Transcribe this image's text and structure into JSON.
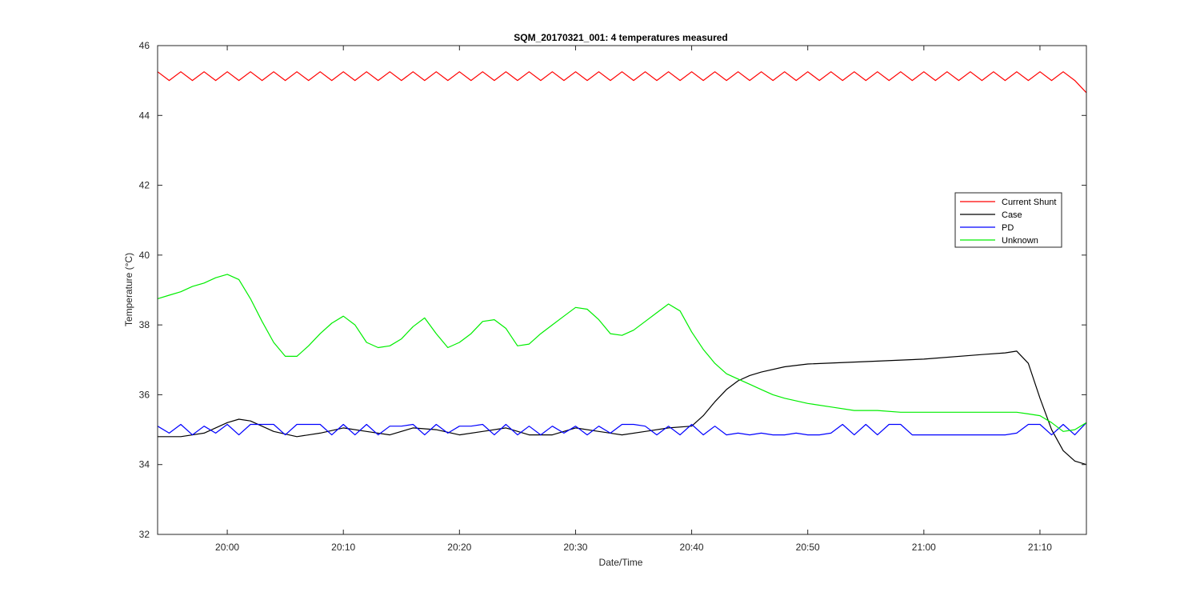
{
  "chart_data": {
    "type": "line",
    "title": "SQM_20170321_001: 4 temperatures measured",
    "xlabel": "Date/Time",
    "ylabel": "Temperature (°C)",
    "xlim": [
      "19:54",
      "21:14"
    ],
    "ylim": [
      32,
      46
    ],
    "x_ticks": [
      "20:00",
      "20:10",
      "20:20",
      "20:30",
      "20:40",
      "20:50",
      "21:00",
      "21:10"
    ],
    "y_ticks": [
      32,
      34,
      36,
      38,
      40,
      42,
      44,
      46
    ],
    "grid": false,
    "legend_position": "right",
    "series": [
      {
        "name": "Current Shunt",
        "color": "#ff0000",
        "x": [
          "19:54",
          "19:55",
          "19:56",
          "19:57",
          "19:58",
          "19:59",
          "20:00",
          "20:01",
          "20:02",
          "20:03",
          "20:04",
          "20:05",
          "20:06",
          "20:07",
          "20:08",
          "20:09",
          "20:10",
          "20:11",
          "20:12",
          "20:13",
          "20:14",
          "20:15",
          "20:16",
          "20:17",
          "20:18",
          "20:19",
          "20:20",
          "20:21",
          "20:22",
          "20:23",
          "20:24",
          "20:25",
          "20:26",
          "20:27",
          "20:28",
          "20:29",
          "20:30",
          "20:31",
          "20:32",
          "20:33",
          "20:34",
          "20:35",
          "20:36",
          "20:37",
          "20:38",
          "20:39",
          "20:40",
          "20:41",
          "20:42",
          "20:43",
          "20:44",
          "20:45",
          "20:46",
          "20:47",
          "20:48",
          "20:49",
          "20:50",
          "20:51",
          "20:52",
          "20:53",
          "20:54",
          "20:55",
          "20:56",
          "20:57",
          "20:58",
          "20:59",
          "21:00",
          "21:01",
          "21:02",
          "21:03",
          "21:04",
          "21:05",
          "21:06",
          "21:07",
          "21:08",
          "21:09",
          "21:10",
          "21:11",
          "21:12",
          "21:13",
          "21:14"
        ],
        "y": [
          45.25,
          45.0,
          45.25,
          45.0,
          45.25,
          45.0,
          45.25,
          45.0,
          45.25,
          45.0,
          45.25,
          45.0,
          45.25,
          45.0,
          45.25,
          45.0,
          45.25,
          45.0,
          45.25,
          45.0,
          45.25,
          45.0,
          45.25,
          45.0,
          45.25,
          45.0,
          45.25,
          45.0,
          45.25,
          45.0,
          45.25,
          45.0,
          45.25,
          45.0,
          45.25,
          45.0,
          45.25,
          45.0,
          45.25,
          45.0,
          45.25,
          45.0,
          45.25,
          45.0,
          45.25,
          45.0,
          45.25,
          45.0,
          45.25,
          45.0,
          45.25,
          45.0,
          45.25,
          45.0,
          45.25,
          45.0,
          45.25,
          45.0,
          45.25,
          45.0,
          45.25,
          45.0,
          45.25,
          45.0,
          45.25,
          45.0,
          45.25,
          45.0,
          45.25,
          45.0,
          45.25,
          45.0,
          45.25,
          45.0,
          45.25,
          45.0,
          45.25,
          45.0,
          45.25,
          45.0,
          44.65
        ]
      },
      {
        "name": "Case",
        "color": "#000000",
        "x": [
          "19:54",
          "19:56",
          "19:58",
          "20:00",
          "20:01",
          "20:02",
          "20:04",
          "20:06",
          "20:08",
          "20:10",
          "20:12",
          "20:14",
          "20:16",
          "20:18",
          "20:20",
          "20:22",
          "20:24",
          "20:26",
          "20:28",
          "20:30",
          "20:32",
          "20:34",
          "20:36",
          "20:38",
          "20:40",
          "20:41",
          "20:42",
          "20:43",
          "20:44",
          "20:45",
          "20:46",
          "20:48",
          "20:50",
          "20:55",
          "21:00",
          "21:05",
          "21:07",
          "21:08",
          "21:09",
          "21:10",
          "21:11",
          "21:12",
          "21:13",
          "21:14"
        ],
        "y": [
          34.8,
          34.8,
          34.9,
          35.2,
          35.3,
          35.25,
          34.95,
          34.8,
          34.9,
          35.05,
          34.95,
          34.85,
          35.05,
          35.0,
          34.85,
          34.95,
          35.05,
          34.85,
          34.85,
          35.05,
          34.95,
          34.85,
          34.95,
          35.05,
          35.1,
          35.4,
          35.8,
          36.15,
          36.4,
          36.55,
          36.65,
          36.8,
          36.88,
          36.95,
          37.02,
          37.15,
          37.2,
          37.25,
          36.9,
          35.9,
          35.0,
          34.4,
          34.1,
          34.0
        ]
      },
      {
        "name": "PD",
        "color": "#0000ff",
        "x": [
          "19:54",
          "19:55",
          "19:56",
          "19:57",
          "19:58",
          "19:59",
          "20:00",
          "20:01",
          "20:02",
          "20:03",
          "20:04",
          "20:05",
          "20:06",
          "20:07",
          "20:08",
          "20:09",
          "20:10",
          "20:11",
          "20:12",
          "20:13",
          "20:14",
          "20:15",
          "20:16",
          "20:17",
          "20:18",
          "20:19",
          "20:20",
          "20:21",
          "20:22",
          "20:23",
          "20:24",
          "20:25",
          "20:26",
          "20:27",
          "20:28",
          "20:29",
          "20:30",
          "20:31",
          "20:32",
          "20:33",
          "20:34",
          "20:35",
          "20:36",
          "20:37",
          "20:38",
          "20:39",
          "20:40",
          "20:41",
          "20:42",
          "20:43",
          "20:44",
          "20:45",
          "20:46",
          "20:47",
          "20:48",
          "20:49",
          "20:50",
          "20:51",
          "20:52",
          "20:53",
          "20:54",
          "20:55",
          "20:56",
          "20:57",
          "20:58",
          "20:59",
          "21:00",
          "21:01",
          "21:02",
          "21:03",
          "21:04",
          "21:05",
          "21:06",
          "21:07",
          "21:08",
          "21:09",
          "21:10",
          "21:11",
          "21:12",
          "21:13",
          "21:14"
        ],
        "y": [
          35.1,
          34.9,
          35.15,
          34.85,
          35.1,
          34.9,
          35.15,
          34.85,
          35.15,
          35.15,
          35.15,
          34.85,
          35.15,
          35.15,
          35.15,
          34.85,
          35.15,
          34.85,
          35.15,
          34.85,
          35.1,
          35.1,
          35.15,
          34.85,
          35.15,
          34.9,
          35.1,
          35.1,
          35.15,
          34.85,
          35.15,
          34.85,
          35.1,
          34.85,
          35.1,
          34.9,
          35.1,
          34.85,
          35.1,
          34.9,
          35.15,
          35.15,
          35.1,
          34.85,
          35.1,
          34.85,
          35.15,
          34.85,
          35.1,
          34.85,
          34.9,
          34.85,
          34.9,
          34.85,
          34.85,
          34.9,
          34.85,
          34.85,
          34.9,
          35.15,
          34.85,
          35.15,
          34.85,
          35.15,
          35.15,
          34.85,
          34.85,
          34.85,
          34.85,
          34.85,
          34.85,
          34.85,
          34.85,
          34.85,
          34.9,
          35.15,
          35.15,
          34.85,
          35.15,
          34.85,
          35.2
        ]
      },
      {
        "name": "Unknown",
        "color": "#00ee00",
        "x": [
          "19:54",
          "19:55",
          "19:56",
          "19:57",
          "19:58",
          "19:59",
          "20:00",
          "20:01",
          "20:02",
          "20:03",
          "20:04",
          "20:05",
          "20:06",
          "20:07",
          "20:08",
          "20:09",
          "20:10",
          "20:11",
          "20:12",
          "20:13",
          "20:14",
          "20:15",
          "20:16",
          "20:17",
          "20:18",
          "20:19",
          "20:20",
          "20:21",
          "20:22",
          "20:23",
          "20:24",
          "20:25",
          "20:26",
          "20:27",
          "20:28",
          "20:29",
          "20:30",
          "20:31",
          "20:32",
          "20:33",
          "20:34",
          "20:35",
          "20:36",
          "20:37",
          "20:38",
          "20:39",
          "20:40",
          "20:41",
          "20:42",
          "20:43",
          "20:44",
          "20:45",
          "20:46",
          "20:47",
          "20:48",
          "20:50",
          "20:52",
          "20:54",
          "20:56",
          "20:58",
          "21:00",
          "21:02",
          "21:04",
          "21:06",
          "21:08",
          "21:09",
          "21:10",
          "21:11",
          "21:12",
          "21:13",
          "21:14"
        ],
        "y": [
          38.75,
          38.85,
          38.95,
          39.1,
          39.2,
          39.35,
          39.45,
          39.3,
          38.75,
          38.1,
          37.5,
          37.1,
          37.1,
          37.4,
          37.75,
          38.05,
          38.25,
          38.0,
          37.5,
          37.35,
          37.4,
          37.6,
          37.95,
          38.2,
          37.75,
          37.35,
          37.5,
          37.75,
          38.1,
          38.15,
          37.9,
          37.4,
          37.45,
          37.75,
          38.0,
          38.25,
          38.5,
          38.45,
          38.15,
          37.75,
          37.7,
          37.85,
          38.1,
          38.35,
          38.6,
          38.4,
          37.8,
          37.3,
          36.9,
          36.6,
          36.45,
          36.3,
          36.15,
          36.0,
          35.9,
          35.75,
          35.65,
          35.55,
          35.55,
          35.5,
          35.5,
          35.5,
          35.5,
          35.5,
          35.5,
          35.45,
          35.4,
          35.2,
          34.95,
          35.0,
          35.2
        ]
      }
    ]
  }
}
